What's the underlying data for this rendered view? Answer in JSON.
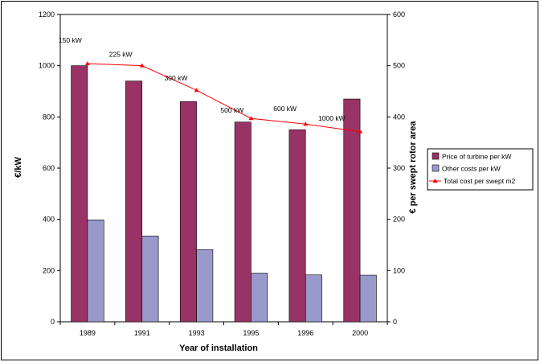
{
  "chart_data": {
    "type": "bar",
    "categories": [
      "1989",
      "1991",
      "1993",
      "1995",
      "1996",
      "2000"
    ],
    "series": [
      {
        "name": "Price of turbine per kW",
        "kind": "bar",
        "axis": "left",
        "color": "#993366",
        "values": [
          1000,
          940,
          860,
          780,
          750,
          870
        ]
      },
      {
        "name": "Other costs per kW",
        "kind": "bar",
        "axis": "left",
        "color": "#9999CC",
        "values": [
          398,
          335,
          282,
          190,
          183,
          182
        ]
      },
      {
        "name": "Total cost per swept m2",
        "kind": "line",
        "axis": "right",
        "color": "#FF0000",
        "values": [
          504,
          500,
          452,
          397,
          386,
          371
        ]
      }
    ],
    "annotations": [
      "150 kW",
      "225 kW",
      "300 kW",
      "500 kW",
      "600 kW",
      "1000 kW"
    ],
    "xlabel": "Year of installation",
    "ylabel": "€/kW",
    "y2label": "€ per swept rotor area",
    "ylim": [
      0,
      1200
    ],
    "y2lim": [
      0,
      600
    ],
    "yticks": [
      "0",
      "200",
      "400",
      "600",
      "800",
      "1000",
      "1200"
    ],
    "y2ticks": [
      "0",
      "100",
      "200",
      "300",
      "400",
      "500",
      "600"
    ],
    "grid": false,
    "legend_position": "right"
  }
}
